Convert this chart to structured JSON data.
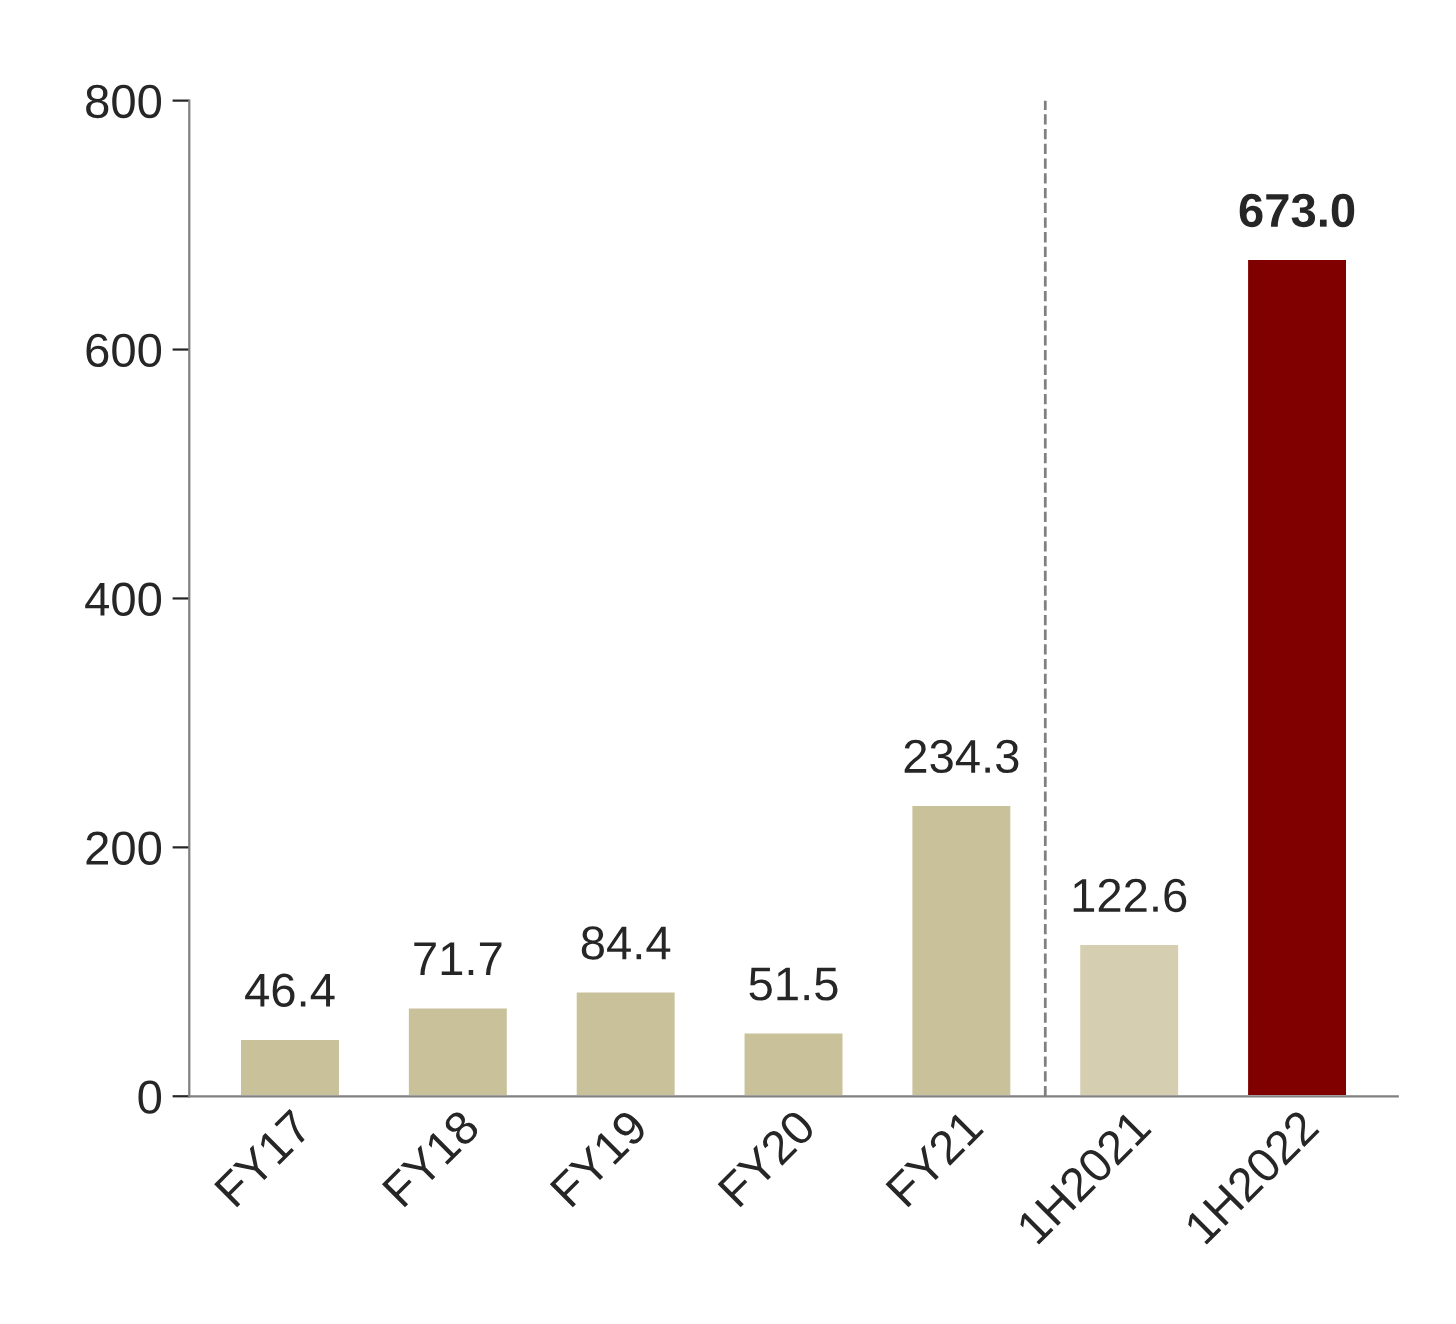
{
  "chart_data": {
    "type": "bar",
    "categories": [
      "FY17",
      "FY18",
      "FY19",
      "FY20",
      "FY21",
      "1H2021",
      "1H2022"
    ],
    "values": [
      46.4,
      71.7,
      84.4,
      51.5,
      234.3,
      122.6,
      673.0
    ],
    "colors": [
      "#c9c19a",
      "#c9c19a",
      "#c9c19a",
      "#c9c19a",
      "#c9c19a",
      "#d6ceb0",
      "#800000"
    ],
    "value_labels": [
      "46.4",
      "71.7",
      "84.4",
      "51.5",
      "234.3",
      "122.6",
      "673.0"
    ],
    "ylim": [
      0,
      800
    ],
    "yticks": [
      0,
      200,
      400,
      600,
      800
    ],
    "grid": false,
    "legend": false
  }
}
